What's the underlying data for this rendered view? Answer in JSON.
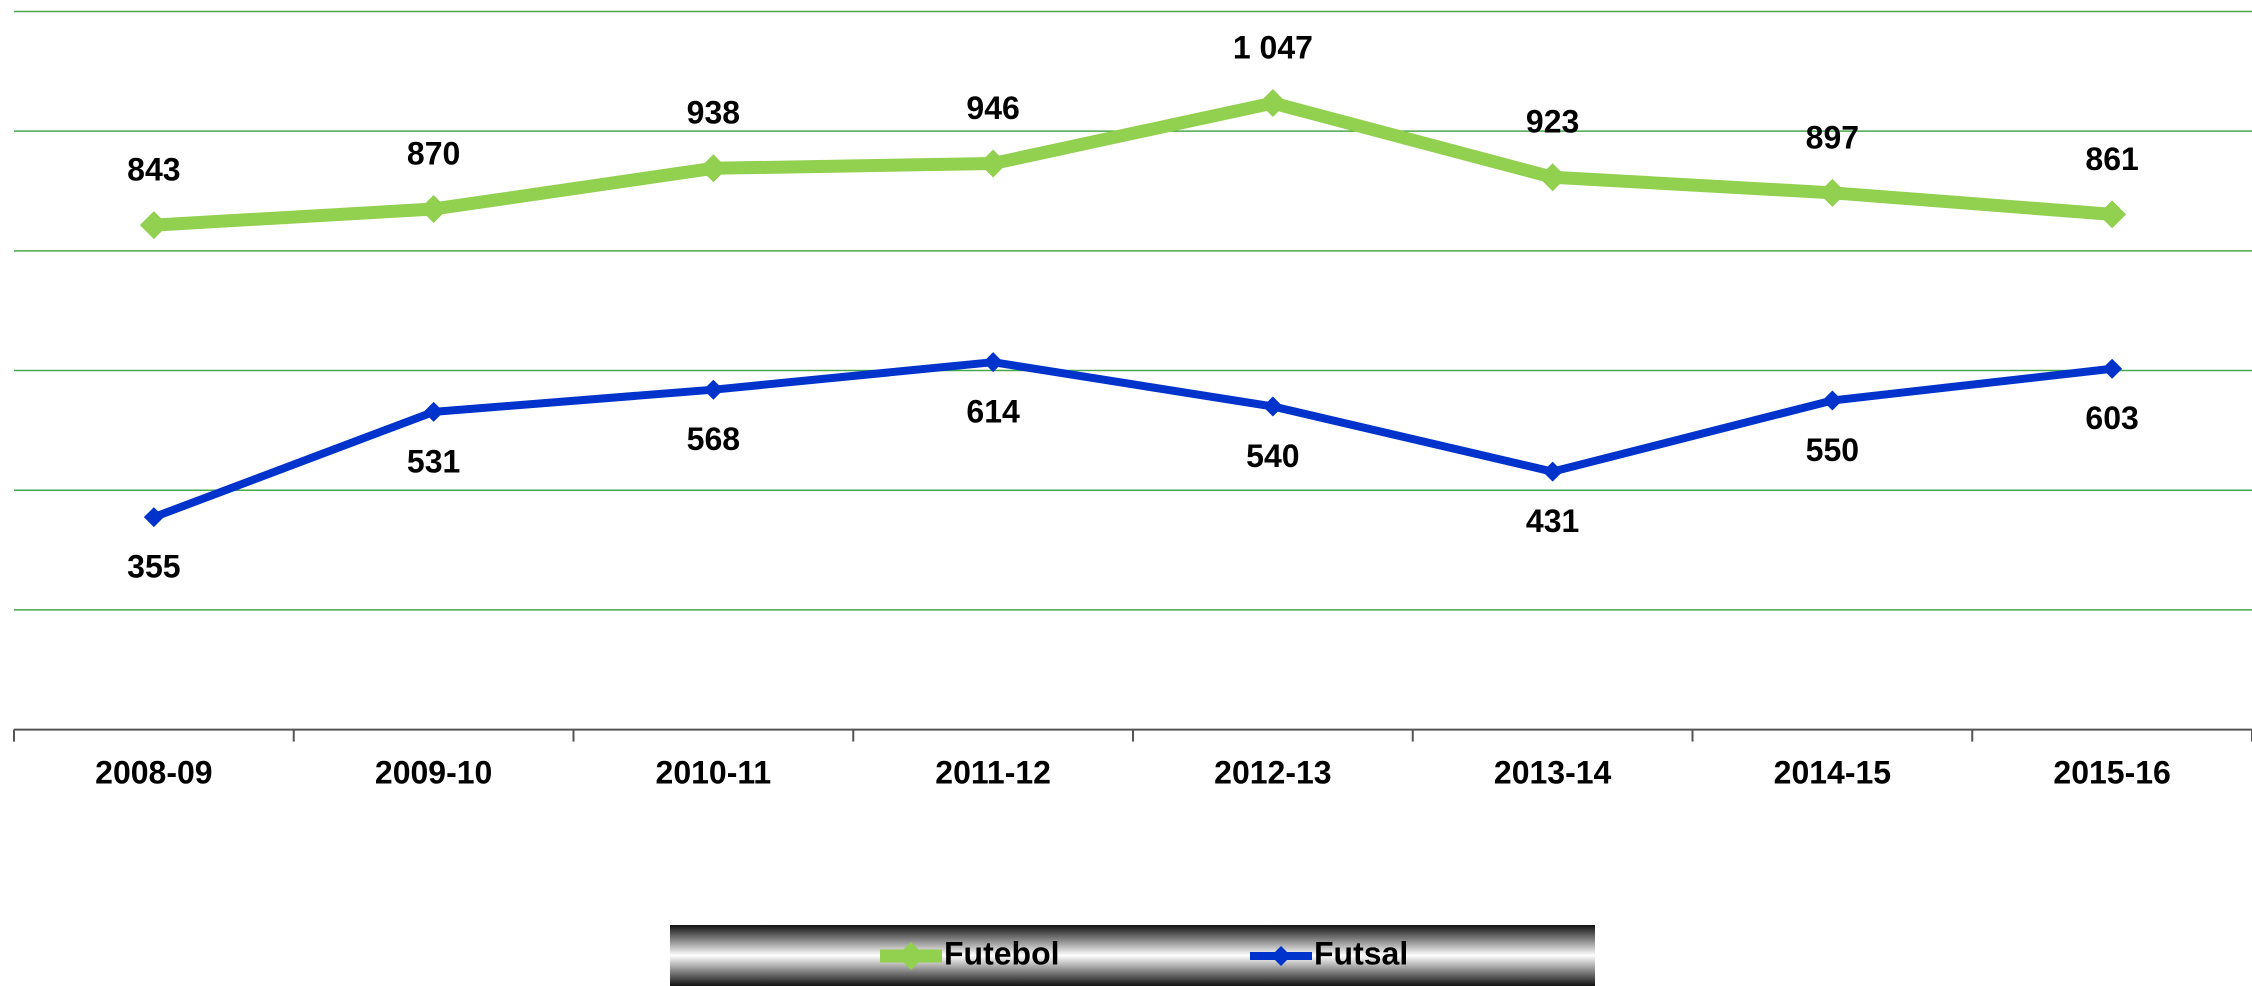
{
  "chart_data": {
    "type": "line",
    "categories": [
      "2008-09",
      "2009-10",
      "2010-11",
      "2011-12",
      "2012-13",
      "2013-14",
      "2014-15",
      "2015-16"
    ],
    "series": [
      {
        "name": "Futebol",
        "color": "#92d050",
        "values": [
          843,
          870,
          938,
          946,
          1047,
          923,
          897,
          861
        ],
        "value_labels": [
          "843",
          "870",
          "938",
          "946",
          "1 047",
          "923",
          "897",
          "861"
        ]
      },
      {
        "name": "Futsal",
        "color": "#0033cc",
        "values": [
          355,
          531,
          568,
          614,
          540,
          431,
          550,
          603
        ]
      }
    ],
    "ylim": [
      0,
      1200
    ],
    "yticks": [
      0,
      200,
      400,
      600,
      800,
      1000,
      1200
    ],
    "grid": true,
    "legend": "bottom"
  }
}
